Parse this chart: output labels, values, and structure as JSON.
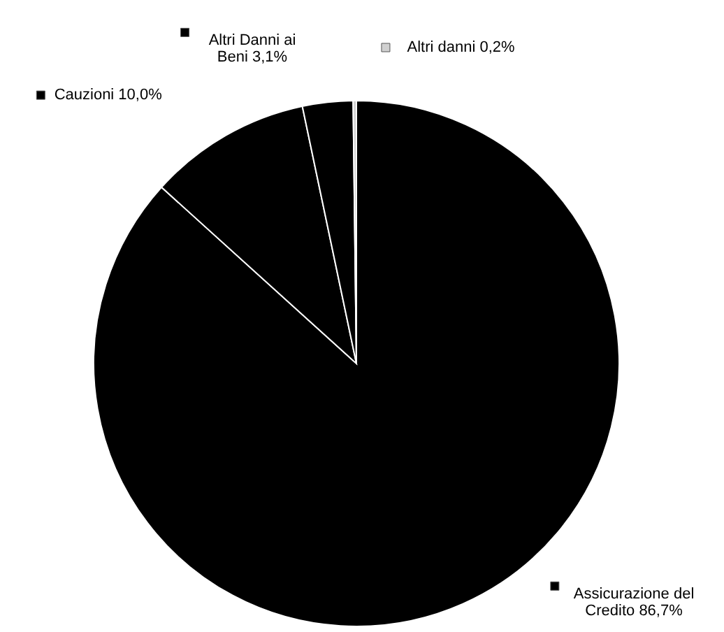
{
  "chart_data": {
    "type": "pie",
    "categories": [
      "Assicurazione del Credito",
      "Cauzioni",
      "Altri Danni ai Beni",
      "Altri danni"
    ],
    "values": [
      86.7,
      10.0,
      3.1,
      0.2
    ],
    "colors": [
      "#000000",
      "#000000",
      "#000000",
      "#d0d0d0"
    ],
    "value_labels": [
      "86,7%",
      "10,0%",
      "3,1%",
      "0,2%"
    ],
    "legend": "top"
  }
}
